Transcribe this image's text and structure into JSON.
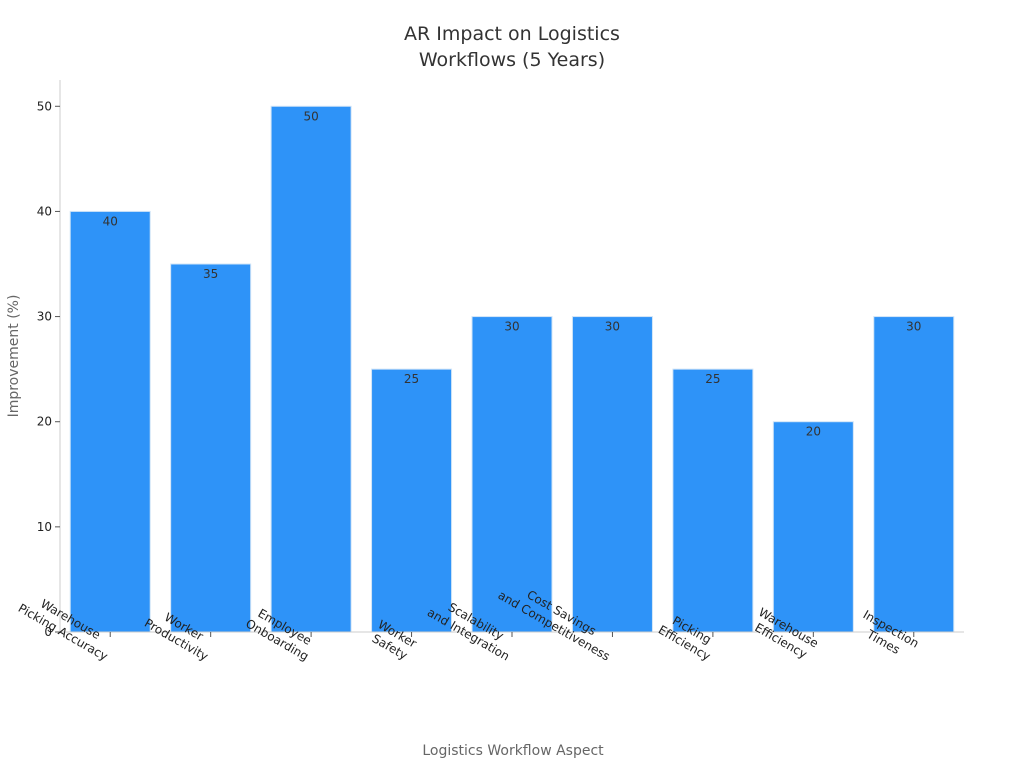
{
  "chart_data": {
    "type": "bar",
    "title": [
      "AR Impact on Logistics",
      "Workflows (5 Years)"
    ],
    "xlabel": "Logistics Workflow Aspect",
    "ylabel": "Improvement (%)",
    "categories": [
      [
        "Warehouse",
        "Picking Accuracy"
      ],
      [
        "Worker",
        "Productivity"
      ],
      [
        "Employee",
        "Onboarding"
      ],
      [
        "Worker",
        "Safety"
      ],
      [
        "Scalability",
        "and Integration"
      ],
      [
        "Cost Savings",
        "and Competitiveness"
      ],
      [
        "Picking",
        "Efficiency"
      ],
      [
        "Warehouse",
        "Efficiency"
      ],
      [
        "Inspection",
        "Times"
      ]
    ],
    "values": [
      40,
      35,
      50,
      25,
      30,
      30,
      25,
      20,
      30
    ],
    "yticks": [
      0,
      10,
      20,
      30,
      40,
      50
    ],
    "ylim": [
      0,
      52.5
    ],
    "bar_color": "#2e93f8",
    "grid": false,
    "legend": "none"
  }
}
